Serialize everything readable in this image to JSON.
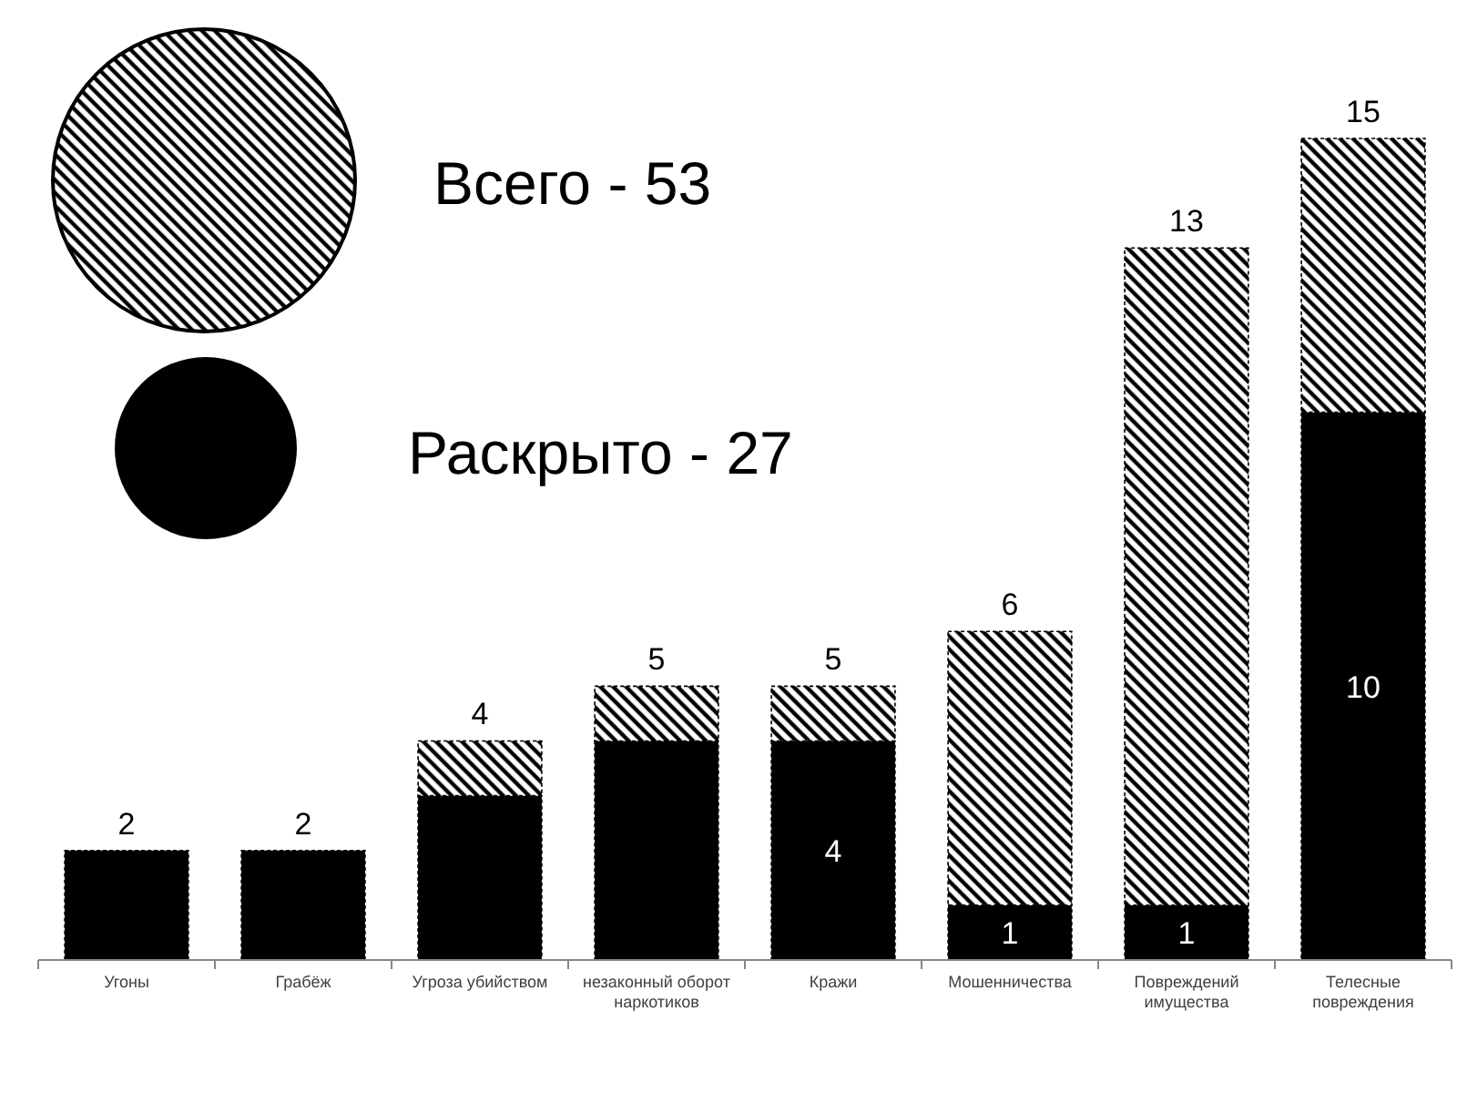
{
  "chart_data": {
    "type": "bar",
    "stacked": true,
    "categories": [
      "Угоны",
      "Грабёж",
      "Угроза убийством",
      "незаконный оборот наркотиков",
      "Кражи",
      "Мошенничества",
      "Повреждений имущества",
      "Телесные повреждения"
    ],
    "series": [
      {
        "color": "#000000",
        "values": [
          2,
          2,
          3,
          4,
          4,
          1,
          1,
          10
        ],
        "value_labels": [
          null,
          null,
          null,
          null,
          "4",
          "1",
          "1",
          "10"
        ]
      },
      {
        "color": "#000000",
        "values": [
          0,
          0,
          1,
          1,
          1,
          5,
          12,
          5
        ]
      }
    ],
    "totals": [
      "2",
      "2",
      "4",
      "5",
      "5",
      "6",
      "13",
      "15"
    ],
    "annotations": [
      "Всего - 53",
      "Раскрыто - 27"
    ]
  }
}
